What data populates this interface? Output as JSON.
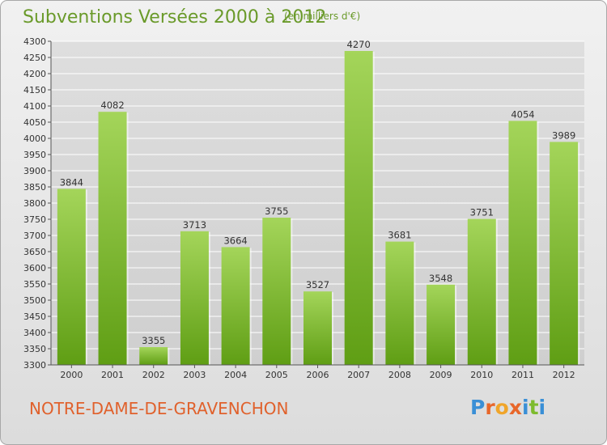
{
  "header": {
    "title": "Subventions Versées 2000 à 2012",
    "unit_note": "(en milliers d'€)"
  },
  "footer": {
    "place_name": "NOTRE-DAME-DE-GRAVENCHON",
    "logo_text": "Proxiti",
    "logo_colors": [
      "#3a8fd6",
      "#e8672a",
      "#f0a52a",
      "#e8672a",
      "#3a8fd6",
      "#7dbb2e",
      "#3a8fd6"
    ]
  },
  "colors": {
    "bar_top": "#a4d55a",
    "bar_bottom": "#5f9e14",
    "grid": "#ffffff",
    "title": "#6a9a2a",
    "place": "#e0612c"
  },
  "chart_data": {
    "type": "bar",
    "title": "Subventions Versées 2000 à 2012",
    "subtitle": "(en milliers d'€)",
    "xlabel": "",
    "ylabel": "",
    "categories": [
      "2000",
      "2001",
      "2002",
      "2003",
      "2004",
      "2005",
      "2006",
      "2007",
      "2008",
      "2009",
      "2010",
      "2011",
      "2012"
    ],
    "values": [
      3844,
      4082,
      3355,
      3713,
      3664,
      3755,
      3527,
      4270,
      3681,
      3548,
      3751,
      4054,
      3989
    ],
    "data_labels": [
      "3844",
      "4082",
      "3355",
      "3713",
      "3664",
      "3755",
      "3527",
      "4270",
      "3681",
      "3548",
      "3751",
      "4054",
      "3989"
    ],
    "ylim": [
      3300,
      4300
    ],
    "ytick_labels": [
      "3300",
      "3350",
      "3400",
      "3450",
      "3500",
      "3550",
      "3600",
      "3650",
      "3700",
      "3750",
      "3800",
      "3850",
      "3900",
      "3950",
      "4000",
      "4050",
      "4100",
      "4150",
      "4200",
      "4250",
      "4300"
    ],
    "grid": true,
    "legend": "none"
  }
}
